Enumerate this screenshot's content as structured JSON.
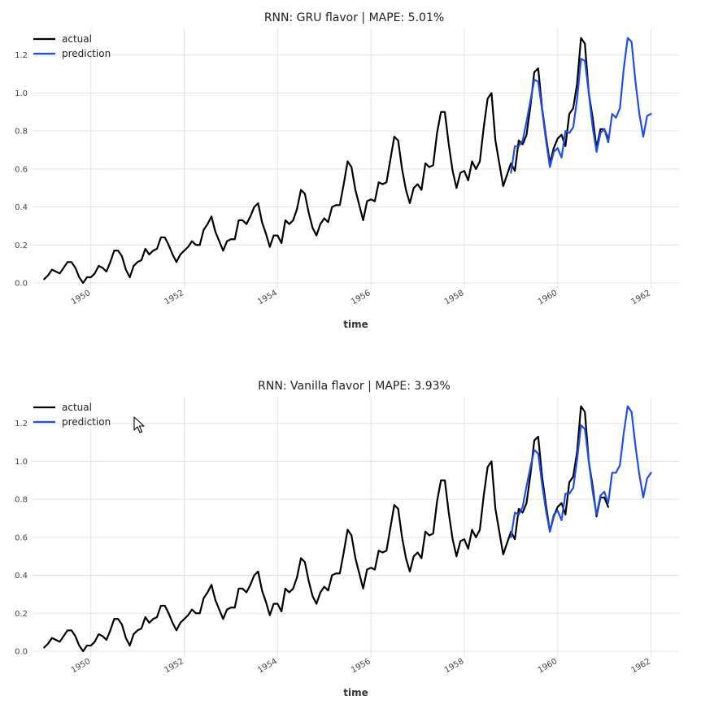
{
  "chart_data": [
    {
      "type": "line",
      "title": "RNN: GRU flavor | MAPE: 5.01%",
      "xlabel": "time",
      "ylabel": "",
      "xlim": [
        1948.75,
        1962.6
      ],
      "ylim": [
        -0.03,
        1.34
      ],
      "x_ticks": [
        {
          "value": 1950,
          "label": "1950"
        },
        {
          "value": 1952,
          "label": "1952"
        },
        {
          "value": 1954,
          "label": "1954"
        },
        {
          "value": 1956,
          "label": "1956"
        },
        {
          "value": 1958,
          "label": "1958"
        },
        {
          "value": 1960,
          "label": "1960"
        },
        {
          "value": 1962,
          "label": "1962"
        }
      ],
      "y_ticks": [
        {
          "value": 0.0,
          "label": "0.0"
        },
        {
          "value": 0.2,
          "label": "0.2"
        },
        {
          "value": 0.4,
          "label": "0.4"
        },
        {
          "value": 0.6,
          "label": "0.6"
        },
        {
          "value": 0.8,
          "label": "0.8"
        },
        {
          "value": 1.0,
          "label": "1.0"
        },
        {
          "value": 1.2,
          "label": "1.2"
        }
      ],
      "grid": true,
      "legend_position": "top-left",
      "series": [
        {
          "name": "actual",
          "color": "#000000",
          "x_start": 1949.0,
          "x_step": 0.08333,
          "values": [
            0.02,
            0.04,
            0.07,
            0.06,
            0.05,
            0.08,
            0.11,
            0.11,
            0.08,
            0.03,
            0.0,
            0.03,
            0.03,
            0.05,
            0.09,
            0.08,
            0.06,
            0.11,
            0.17,
            0.17,
            0.14,
            0.07,
            0.03,
            0.09,
            0.11,
            0.12,
            0.18,
            0.15,
            0.17,
            0.18,
            0.24,
            0.24,
            0.2,
            0.15,
            0.11,
            0.15,
            0.17,
            0.19,
            0.22,
            0.2,
            0.2,
            0.28,
            0.31,
            0.35,
            0.27,
            0.22,
            0.17,
            0.22,
            0.23,
            0.23,
            0.33,
            0.33,
            0.31,
            0.35,
            0.4,
            0.42,
            0.32,
            0.26,
            0.19,
            0.25,
            0.25,
            0.21,
            0.33,
            0.31,
            0.33,
            0.39,
            0.49,
            0.47,
            0.37,
            0.29,
            0.25,
            0.31,
            0.34,
            0.32,
            0.4,
            0.41,
            0.41,
            0.52,
            0.64,
            0.61,
            0.49,
            0.41,
            0.33,
            0.43,
            0.44,
            0.43,
            0.53,
            0.52,
            0.53,
            0.65,
            0.77,
            0.75,
            0.6,
            0.49,
            0.42,
            0.5,
            0.52,
            0.49,
            0.63,
            0.61,
            0.62,
            0.79,
            0.9,
            0.9,
            0.73,
            0.59,
            0.5,
            0.58,
            0.59,
            0.54,
            0.64,
            0.6,
            0.64,
            0.82,
            0.97,
            1.0,
            0.75,
            0.63,
            0.51,
            0.57,
            0.63,
            0.59,
            0.75,
            0.73,
            0.78,
            0.93,
            1.11,
            1.13,
            0.92,
            0.77,
            0.63,
            0.71,
            0.76,
            0.78,
            0.72,
            0.89,
            0.92,
            1.05,
            1.29,
            1.26,
            1.0,
            0.87,
            0.71,
            0.81,
            0.81,
            0.76
          ]
        },
        {
          "name": "prediction",
          "color": "#1f4ee8",
          "x_start": 1959.0,
          "x_step": 0.08333,
          "values": [
            0.58,
            0.72,
            0.72,
            0.75,
            0.85,
            0.96,
            1.07,
            1.06,
            0.91,
            0.75,
            0.61,
            0.69,
            0.71,
            0.66,
            0.8,
            0.79,
            0.82,
            0.97,
            1.18,
            1.17,
            1.0,
            0.82,
            0.69,
            0.79,
            0.81,
            0.74,
            0.89,
            0.87,
            0.92,
            1.13,
            1.29,
            1.27,
            1.06,
            0.89,
            0.77,
            0.88,
            0.89
          ]
        }
      ]
    },
    {
      "type": "line",
      "title": "RNN: Vanilla flavor | MAPE: 3.93%",
      "xlabel": "time",
      "ylabel": "",
      "xlim": [
        1948.75,
        1962.6
      ],
      "ylim": [
        -0.03,
        1.34
      ],
      "x_ticks": [
        {
          "value": 1950,
          "label": "1950"
        },
        {
          "value": 1952,
          "label": "1952"
        },
        {
          "value": 1954,
          "label": "1954"
        },
        {
          "value": 1956,
          "label": "1956"
        },
        {
          "value": 1958,
          "label": "1958"
        },
        {
          "value": 1960,
          "label": "1960"
        },
        {
          "value": 1962,
          "label": "1962"
        }
      ],
      "y_ticks": [
        {
          "value": 0.0,
          "label": "0.0"
        },
        {
          "value": 0.2,
          "label": "0.2"
        },
        {
          "value": 0.4,
          "label": "0.4"
        },
        {
          "value": 0.6,
          "label": "0.6"
        },
        {
          "value": 0.8,
          "label": "0.8"
        },
        {
          "value": 1.0,
          "label": "1.0"
        },
        {
          "value": 1.2,
          "label": "1.2"
        }
      ],
      "grid": true,
      "legend_position": "top-left",
      "series": [
        {
          "name": "actual",
          "color": "#000000",
          "x_start": 1949.0,
          "x_step": 0.08333,
          "values": [
            0.02,
            0.04,
            0.07,
            0.06,
            0.05,
            0.08,
            0.11,
            0.11,
            0.08,
            0.03,
            0.0,
            0.03,
            0.03,
            0.05,
            0.09,
            0.08,
            0.06,
            0.11,
            0.17,
            0.17,
            0.14,
            0.07,
            0.03,
            0.09,
            0.11,
            0.12,
            0.18,
            0.15,
            0.17,
            0.18,
            0.24,
            0.24,
            0.2,
            0.15,
            0.11,
            0.15,
            0.17,
            0.19,
            0.22,
            0.2,
            0.2,
            0.28,
            0.31,
            0.35,
            0.27,
            0.22,
            0.17,
            0.22,
            0.23,
            0.23,
            0.33,
            0.33,
            0.31,
            0.35,
            0.4,
            0.42,
            0.32,
            0.26,
            0.19,
            0.25,
            0.25,
            0.21,
            0.33,
            0.31,
            0.33,
            0.39,
            0.49,
            0.47,
            0.37,
            0.29,
            0.25,
            0.31,
            0.34,
            0.32,
            0.4,
            0.41,
            0.41,
            0.52,
            0.64,
            0.61,
            0.49,
            0.41,
            0.33,
            0.43,
            0.44,
            0.43,
            0.53,
            0.52,
            0.53,
            0.65,
            0.77,
            0.75,
            0.6,
            0.49,
            0.42,
            0.5,
            0.52,
            0.49,
            0.63,
            0.61,
            0.62,
            0.79,
            0.9,
            0.9,
            0.73,
            0.59,
            0.5,
            0.58,
            0.59,
            0.54,
            0.64,
            0.6,
            0.64,
            0.82,
            0.97,
            1.0,
            0.75,
            0.63,
            0.51,
            0.57,
            0.63,
            0.59,
            0.75,
            0.73,
            0.78,
            0.93,
            1.11,
            1.13,
            0.92,
            0.77,
            0.63,
            0.71,
            0.76,
            0.78,
            0.72,
            0.89,
            0.92,
            1.05,
            1.29,
            1.26,
            1.0,
            0.87,
            0.71,
            0.81,
            0.81,
            0.76
          ]
        },
        {
          "name": "prediction",
          "color": "#1f4ee8",
          "x_start": 1959.0,
          "x_step": 0.08333,
          "values": [
            0.6,
            0.73,
            0.72,
            0.76,
            0.87,
            0.97,
            1.06,
            1.04,
            0.88,
            0.74,
            0.63,
            0.72,
            0.74,
            0.69,
            0.83,
            0.83,
            0.86,
            1.01,
            1.19,
            1.17,
            1.0,
            0.84,
            0.72,
            0.82,
            0.84,
            0.78,
            0.94,
            0.94,
            0.98,
            1.15,
            1.29,
            1.26,
            1.08,
            0.93,
            0.81,
            0.91,
            0.94
          ]
        }
      ]
    }
  ]
}
